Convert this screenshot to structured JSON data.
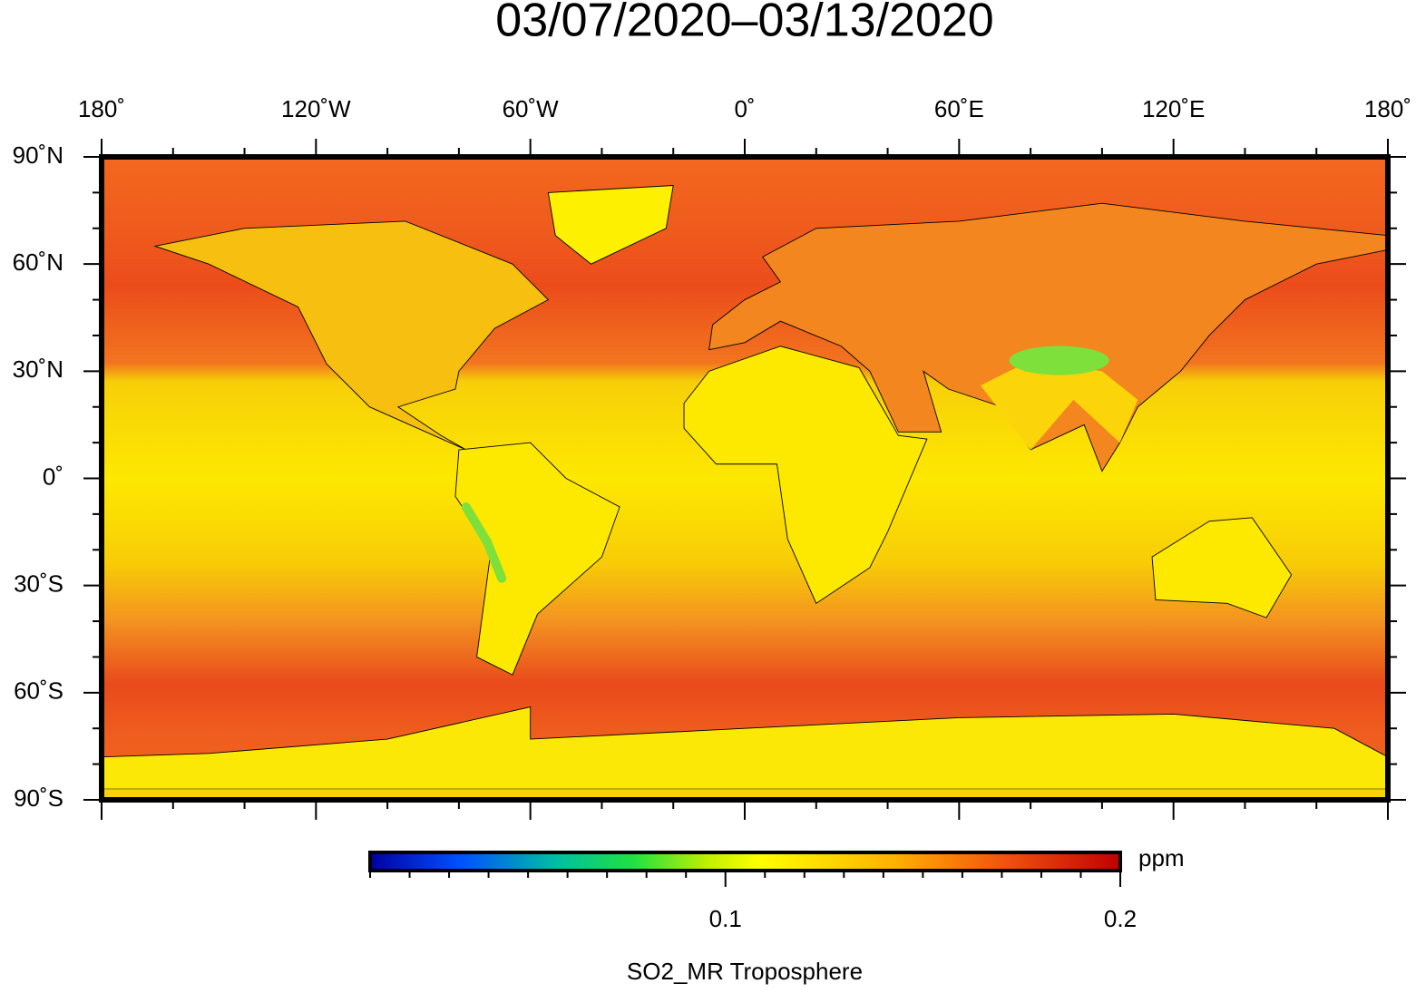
{
  "title": "03/07/2020–03/13/2020",
  "map": {
    "xlim": [
      -180,
      180
    ],
    "ylim": [
      -90,
      90
    ],
    "xticks": [
      {
        "value": -180,
        "label": "180˚"
      },
      {
        "value": -120,
        "label": "120˚W"
      },
      {
        "value": -60,
        "label": "60˚W"
      },
      {
        "value": 0,
        "label": "0˚"
      },
      {
        "value": 60,
        "label": "60˚E"
      },
      {
        "value": 120,
        "label": "120˚E"
      },
      {
        "value": 180,
        "label": "180˚"
      }
    ],
    "yticks": [
      {
        "value": 90,
        "label": "90˚N"
      },
      {
        "value": 60,
        "label": "60˚N"
      },
      {
        "value": 30,
        "label": "30˚N"
      },
      {
        "value": 0,
        "label": "0˚"
      },
      {
        "value": -30,
        "label": "30˚S"
      },
      {
        "value": -60,
        "label": "60˚S"
      },
      {
        "value": -90,
        "label": "90˚S"
      }
    ]
  },
  "colorbar": {
    "lim": [
      0.01,
      0.2
    ],
    "ticks": [
      0.1,
      0.2
    ],
    "unit": "ppm",
    "label": "SO2_MR Troposphere"
  }
}
